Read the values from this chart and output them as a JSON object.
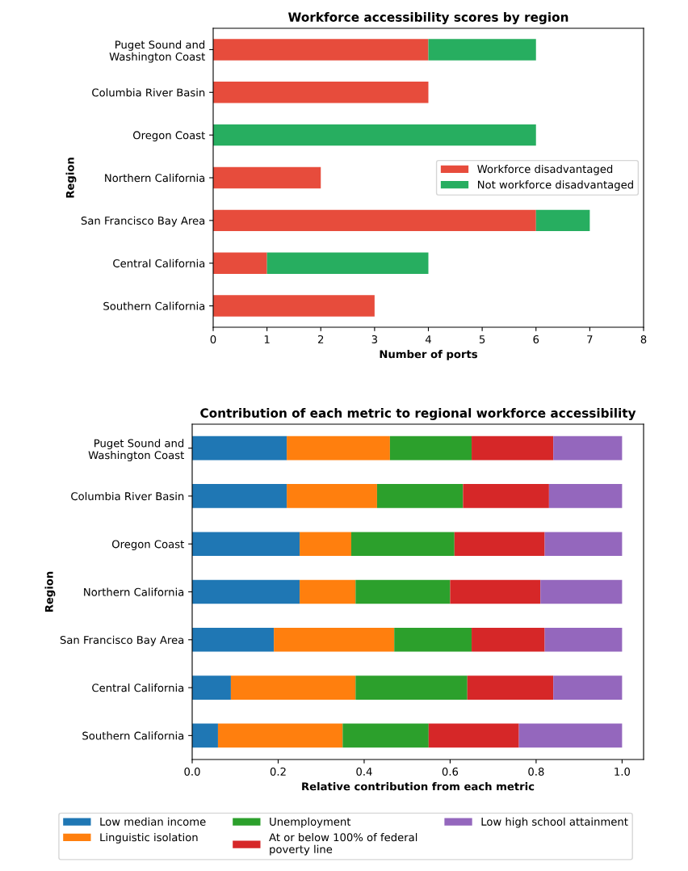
{
  "chart_data": [
    {
      "type": "bar",
      "orientation": "horizontal",
      "stacked": true,
      "title": "Workforce accessibility scores by region",
      "xlabel": "Number of ports",
      "ylabel": "Region",
      "categories": [
        "Puget Sound and\nWashington Coast",
        "Columbia River Basin",
        "Oregon Coast",
        "Northern California",
        "San Francisco Bay Area",
        "Central California",
        "Southern California"
      ],
      "series": [
        {
          "name": "Workforce disadvantaged",
          "color": "#e74c3c",
          "values": [
            4,
            4,
            0,
            2,
            6,
            1,
            3
          ]
        },
        {
          "name": "Not workforce disadvantaged",
          "color": "#27ae60",
          "values": [
            2,
            0,
            6,
            0,
            1,
            3,
            0
          ]
        }
      ],
      "xlim": [
        0,
        8
      ],
      "xticks": [
        0,
        1,
        2,
        3,
        4,
        5,
        6,
        7,
        8
      ],
      "legend": "right",
      "grid": false
    },
    {
      "type": "bar",
      "orientation": "horizontal",
      "stacked": true,
      "title": "Contribution of each metric to regional workforce accessibility",
      "xlabel": "Relative contribution from each metric",
      "ylabel": "Region",
      "categories": [
        "Puget Sound and\nWashington Coast",
        "Columbia River Basin",
        "Oregon Coast",
        "Northern California",
        "San Francisco Bay Area",
        "Central California",
        "Southern California"
      ],
      "series": [
        {
          "name": "Low median income",
          "color": "#1f77b4",
          "values": [
            0.22,
            0.22,
            0.25,
            0.25,
            0.19,
            0.09,
            0.06
          ]
        },
        {
          "name": "Linguistic isolation",
          "color": "#ff7f0e",
          "values": [
            0.24,
            0.21,
            0.12,
            0.13,
            0.28,
            0.29,
            0.29
          ]
        },
        {
          "name": "Unemployment",
          "color": "#2ca02c",
          "values": [
            0.19,
            0.2,
            0.24,
            0.22,
            0.18,
            0.26,
            0.2
          ]
        },
        {
          "name": "At or below 100% of federal\npoverty line",
          "color": "#d62728",
          "values": [
            0.19,
            0.2,
            0.21,
            0.21,
            0.17,
            0.2,
            0.21
          ]
        },
        {
          "name": "Low high school attainment",
          "color": "#9467bd",
          "values": [
            0.16,
            0.17,
            0.18,
            0.19,
            0.18,
            0.16,
            0.24
          ]
        }
      ],
      "xlim": [
        0,
        1.05
      ],
      "xticks": [
        {
          "value": 0,
          "label": "0.0"
        },
        0.2,
        0.4,
        0.6,
        0.8,
        {
          "value": 1,
          "label": "1.0"
        }
      ],
      "legend": "bottom",
      "grid": false
    }
  ]
}
